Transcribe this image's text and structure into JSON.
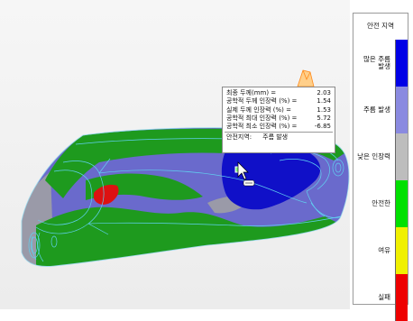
{
  "tooltip": {
    "rows": [
      {
        "label": "최종 두께(mm) =",
        "value": "2.03"
      },
      {
        "label": "공학적 두께 인장력 (%) =",
        "value": "1.54"
      },
      {
        "label": "실제 두께 인장력 (%) =",
        "value": "1.53"
      },
      {
        "label": "공학적 최대 인장력 (%) =",
        "value": "5.72"
      },
      {
        "label": "공학적 최소 인장력 (%) =",
        "value": "-6.85"
      }
    ],
    "zone_label": "안전지역:",
    "zone_value": "주름 발생"
  },
  "legend": {
    "title": "안전 지역",
    "items": [
      {
        "label": "많은 주름 발생",
        "color": "#0000e6"
      },
      {
        "label": "주름 발생",
        "color": "#8a8ae0"
      },
      {
        "label": "낮은 인장력",
        "color": "#bdbdbd"
      },
      {
        "label": "안전한",
        "color": "#00e000"
      },
      {
        "label": "여유",
        "color": "#f0f000"
      },
      {
        "label": "실패",
        "color": "#ee0000"
      }
    ]
  },
  "colors": {
    "heavy_wrinkle": "#1010c8",
    "wrinkle": "#6a6acc",
    "low_strain": "#9a9aa8",
    "safe": "#1e9a1e",
    "fail": "#dd1111",
    "wireframe": "#60d0f0",
    "accent_marker": "#ff8a1a"
  },
  "viewport": {
    "cursor_icon": "arrow-cursor-icon"
  }
}
